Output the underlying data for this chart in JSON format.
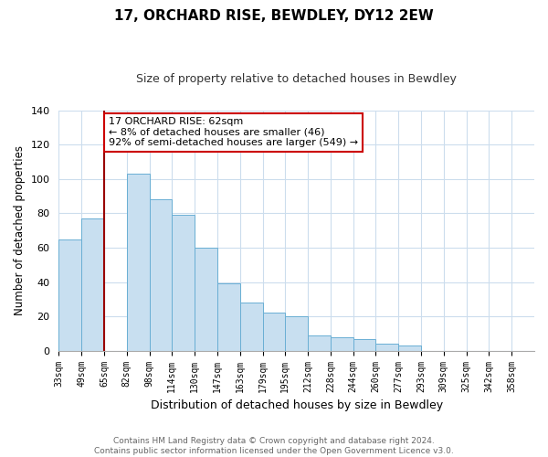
{
  "title": "17, ORCHARD RISE, BEWDLEY, DY12 2EW",
  "subtitle": "Size of property relative to detached houses in Bewdley",
  "xlabel": "Distribution of detached houses by size in Bewdley",
  "ylabel": "Number of detached properties",
  "bin_labels": [
    "33sqm",
    "49sqm",
    "65sqm",
    "82sqm",
    "98sqm",
    "114sqm",
    "130sqm",
    "147sqm",
    "163sqm",
    "179sqm",
    "195sqm",
    "212sqm",
    "228sqm",
    "244sqm",
    "260sqm",
    "277sqm",
    "293sqm",
    "309sqm",
    "325sqm",
    "342sqm",
    "358sqm"
  ],
  "bar_values": [
    65,
    77,
    0,
    103,
    88,
    79,
    60,
    39,
    28,
    22,
    20,
    9,
    8,
    7,
    4,
    3,
    0,
    0,
    0,
    0,
    0
  ],
  "bar_color": "#c8dff0",
  "bar_edge_color": "#6aafd4",
  "marker_line_color": "#990000",
  "annotation_lines": [
    "17 ORCHARD RISE: 62sqm",
    "← 8% of detached houses are smaller (46)",
    "92% of semi-detached houses are larger (549) →"
  ],
  "annotation_box_color": "#ffffff",
  "annotation_box_edge": "#cc0000",
  "ylim": [
    0,
    140
  ],
  "yticks": [
    0,
    20,
    40,
    60,
    80,
    100,
    120,
    140
  ],
  "footer_line1": "Contains HM Land Registry data © Crown copyright and database right 2024.",
  "footer_line2": "Contains public sector information licensed under the Open Government Licence v3.0.",
  "bg_color": "#ffffff",
  "grid_color": "#ccdded"
}
